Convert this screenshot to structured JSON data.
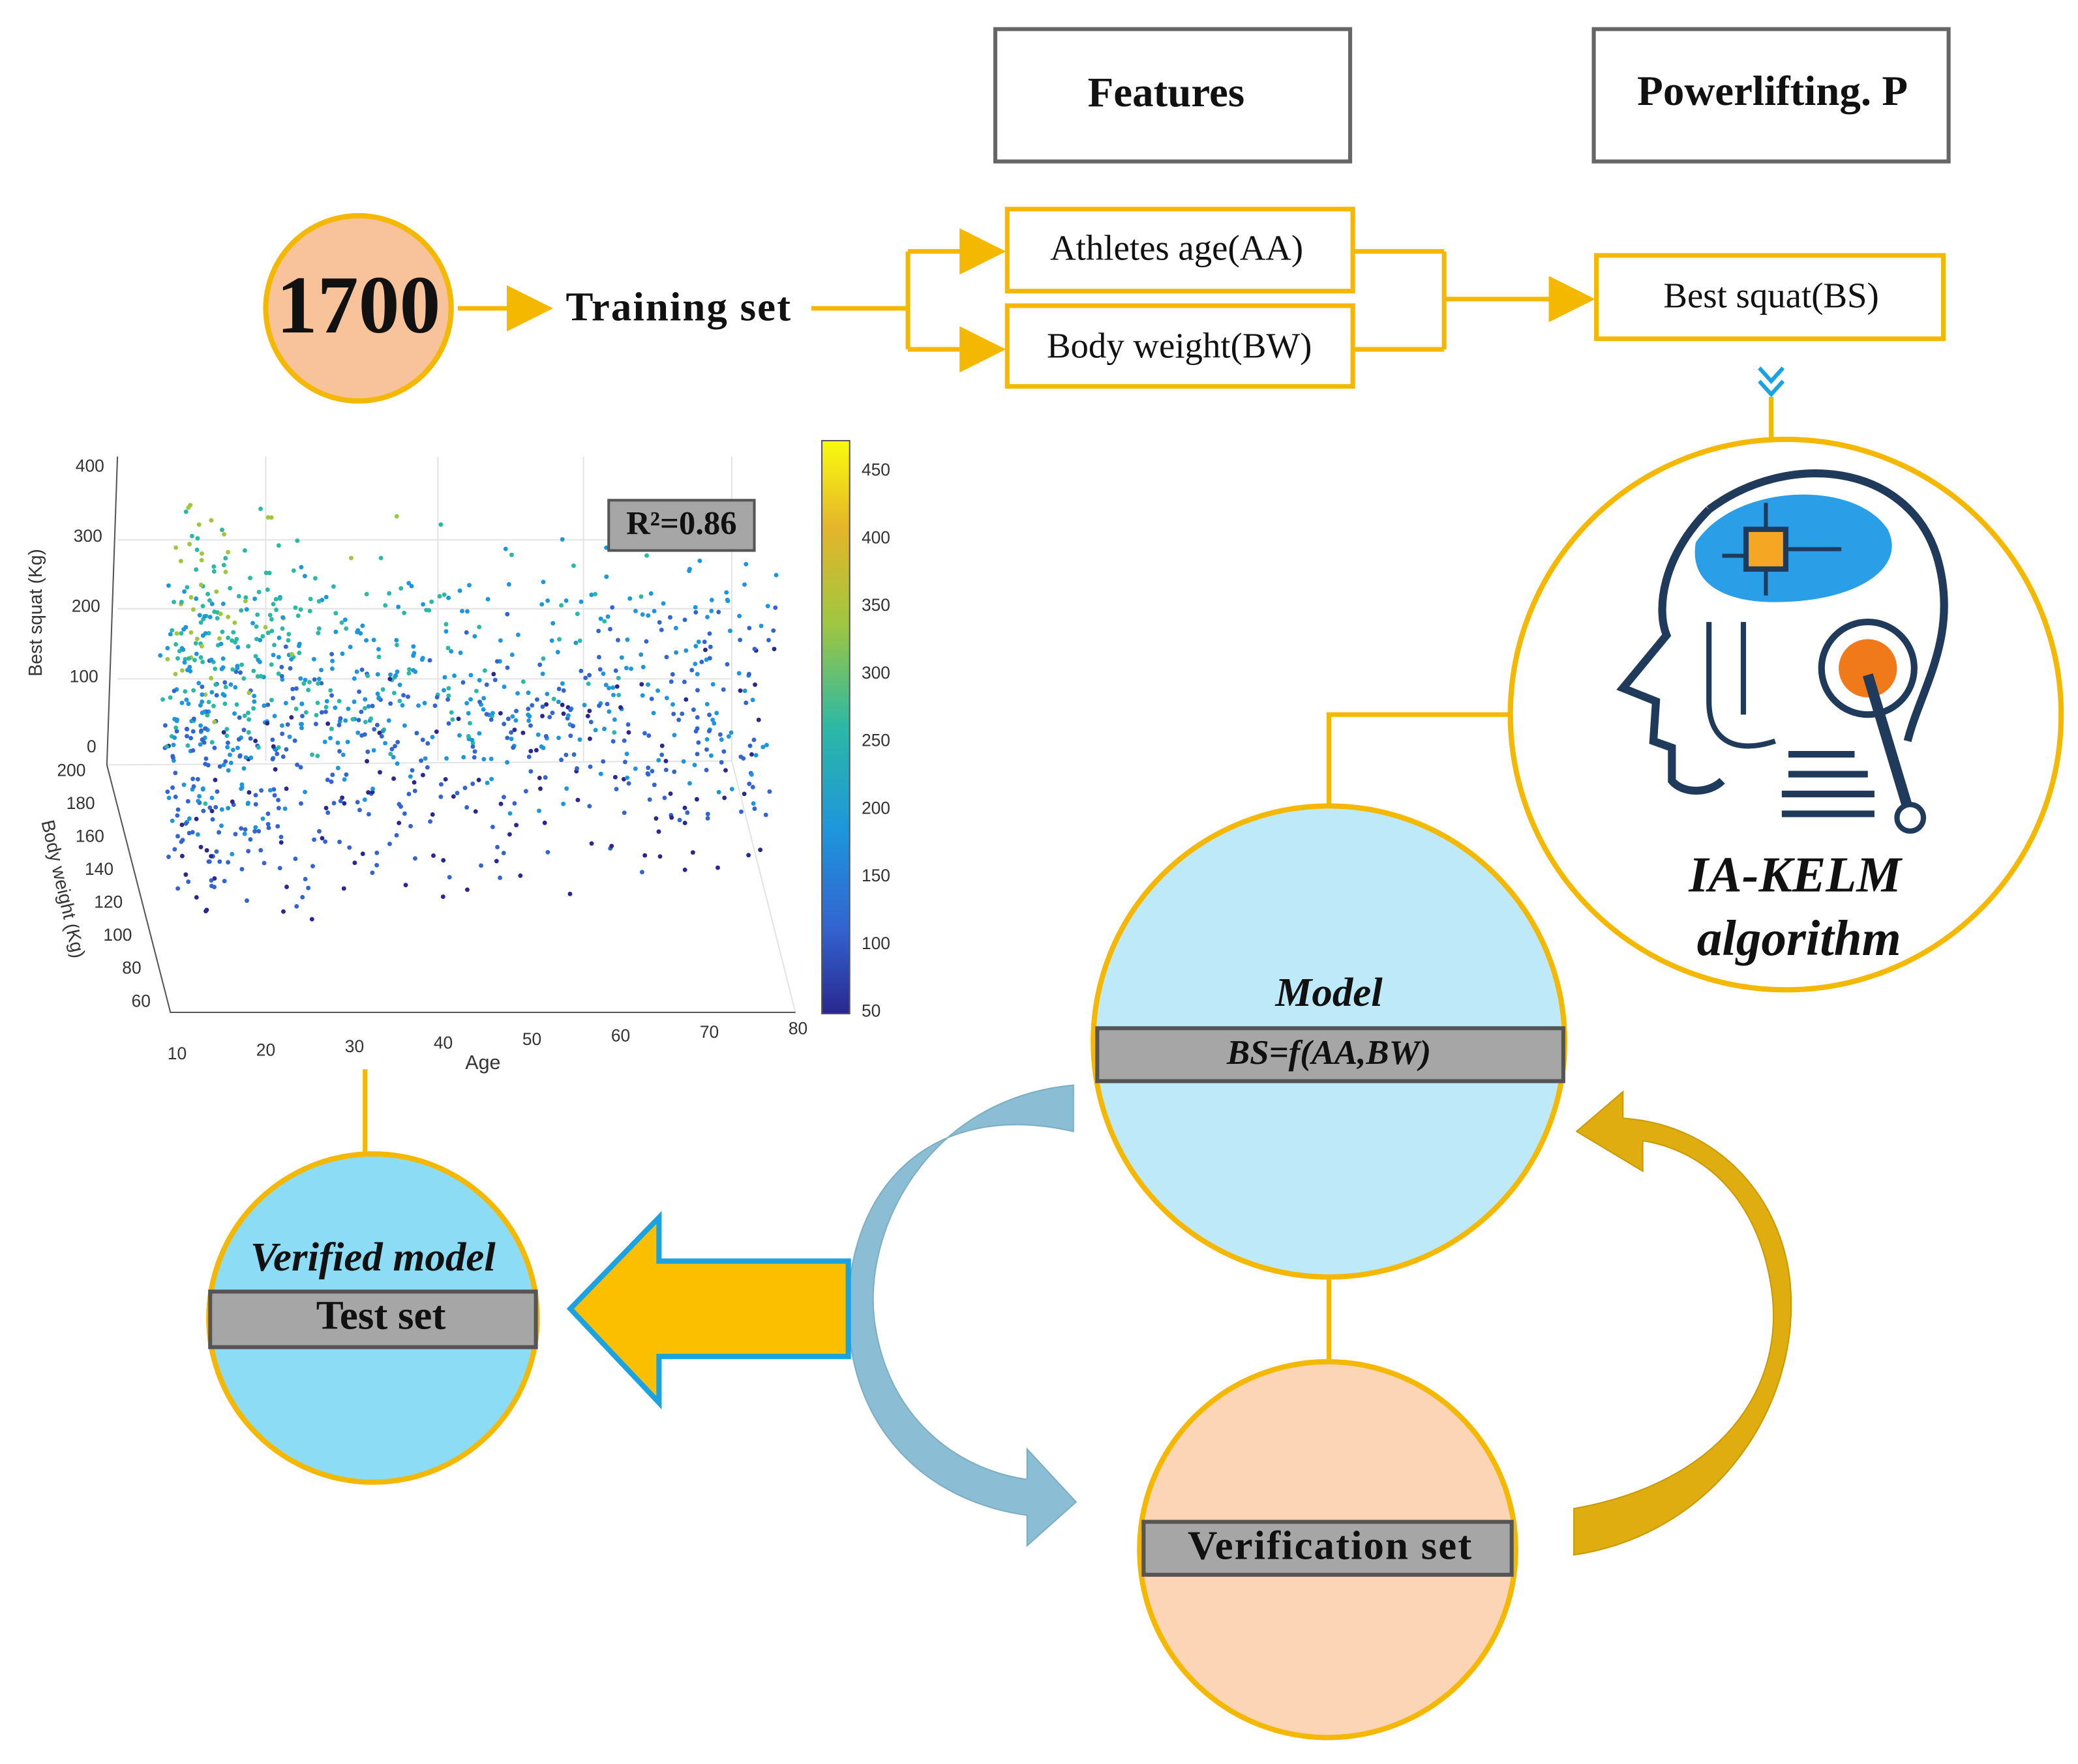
{
  "header": {
    "features": "Features",
    "target": "Powerlifting. P"
  },
  "training": {
    "count": 1700,
    "label": "Training set"
  },
  "features": [
    "Athletes age(AA)",
    "Body weight(BW)"
  ],
  "target": "Best squat(BS)",
  "algorithm": [
    "IA-KELM",
    "algorithm"
  ],
  "model": {
    "title": "Model",
    "formula": "BS=f(AA,BW)"
  },
  "verification": "Verification set",
  "test": {
    "title": "Verified model",
    "label": "Test set"
  },
  "scatter": {
    "annotation": "R²=0.86",
    "z_label": "Best squat (Kg)",
    "y_label": "Body weight (Kg)",
    "x_label": "Age",
    "z_ticks": [
      400,
      300,
      200,
      100,
      0
    ],
    "y_ticks": [
      200,
      180,
      160,
      140,
      120,
      100,
      80,
      60
    ],
    "x_ticks": [
      10,
      20,
      30,
      40,
      50,
      60,
      70,
      80
    ],
    "colorbar_ticks": [
      450,
      400,
      350,
      300,
      250,
      200,
      150,
      100,
      50
    ]
  }
}
